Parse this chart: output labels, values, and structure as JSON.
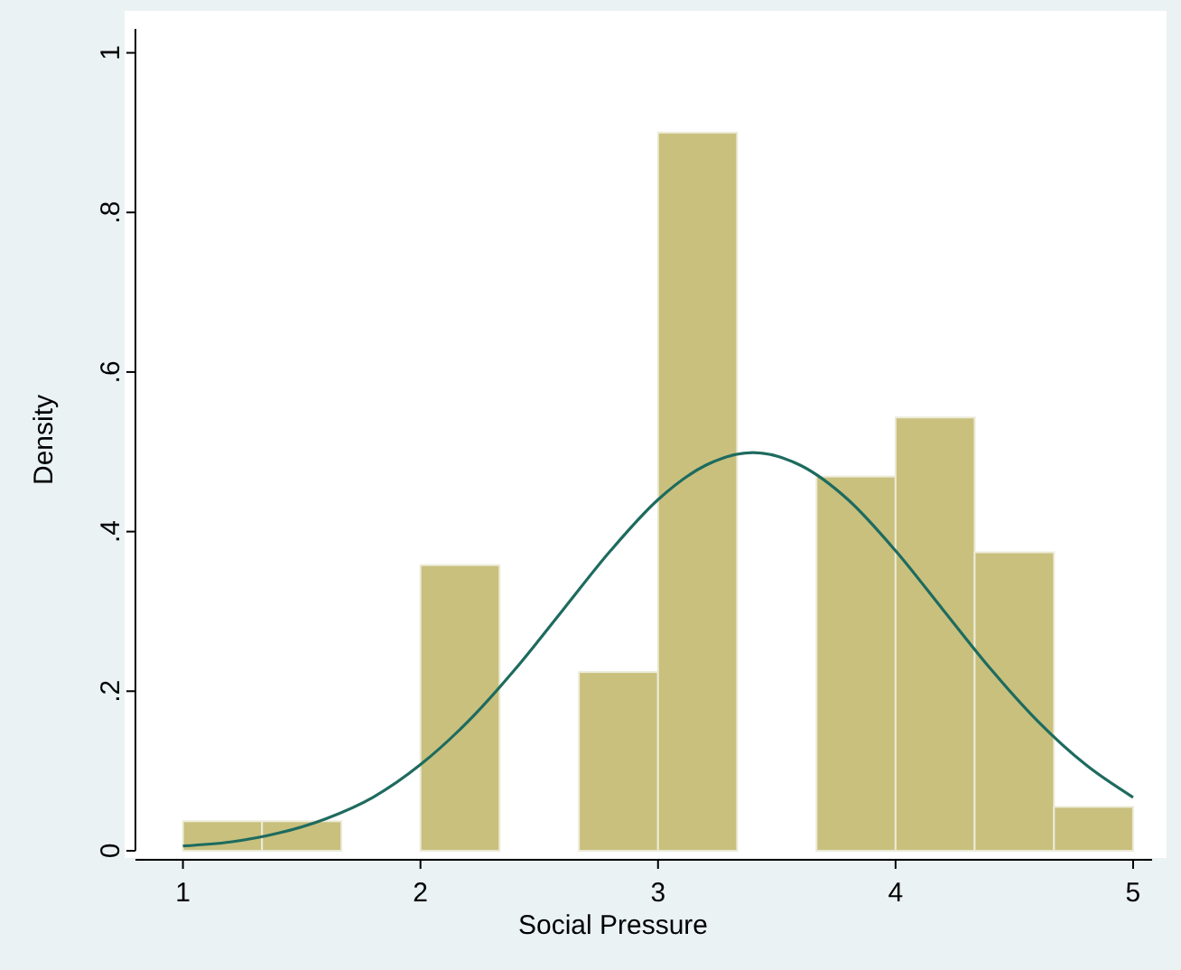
{
  "chart_data": {
    "type": "histogram",
    "xlabel": "Social Pressure",
    "ylabel": "Density",
    "bins": [
      1,
      1.333,
      1.667,
      2,
      2.333,
      2.667,
      3,
      3.333,
      3.667,
      4,
      4.333,
      4.667,
      5
    ],
    "series": [
      {
        "color": "#c9c07e",
        "values": [
          0.037,
          0.037,
          0,
          0.358,
          0,
          0.224,
          0.9,
          0,
          0.469,
          0.543,
          0.374,
          0.055
        ]
      },
      {
        "type": "line",
        "color": "#1e6b5f",
        "x": [
          1,
          1.2,
          1.4,
          1.6,
          1.8,
          2,
          2.2,
          2.4,
          2.6,
          2.8,
          3,
          3.2,
          3.4,
          3.6,
          3.8,
          4,
          4.2,
          4.4,
          4.6,
          4.8,
          5
        ],
        "values": [
          0.006,
          0.011,
          0.022,
          0.04,
          0.067,
          0.108,
          0.162,
          0.228,
          0.302,
          0.376,
          0.44,
          0.483,
          0.499,
          0.483,
          0.44,
          0.376,
          0.302,
          0.228,
          0.162,
          0.108,
          0.067
        ]
      }
    ],
    "xlim": [
      0.8,
      5.08
    ],
    "ylim": [
      0,
      1.03
    ],
    "xticks": [
      1,
      2,
      3,
      4,
      5
    ],
    "yticks": [
      {
        "value": 0,
        "label": "0"
      },
      {
        "value": 0.2,
        "label": ".2"
      },
      {
        "value": 0.4,
        "label": ".4"
      },
      {
        "value": 0.6,
        "label": ".6"
      },
      {
        "value": 0.8,
        "label": ".8"
      },
      {
        "value": 1,
        "label": "1"
      }
    ],
    "grid": false
  }
}
